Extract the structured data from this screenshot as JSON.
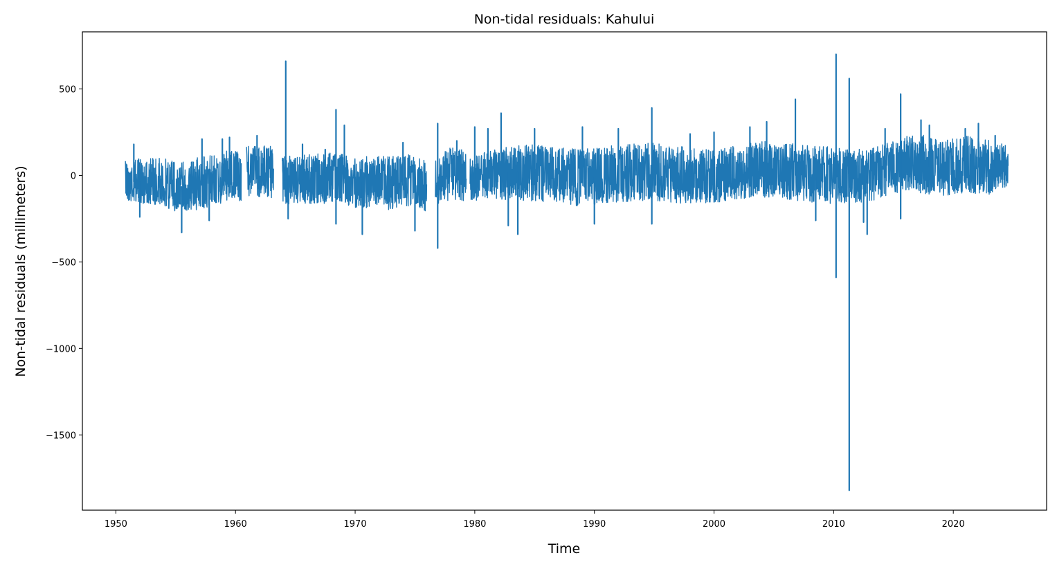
{
  "chart_data": {
    "type": "line",
    "title": "Non-tidal residuals: Kahului",
    "xlabel": "Time",
    "ylabel": "Non-tidal residuals (millimeters)",
    "xlim": [
      1947.2,
      2027.8
    ],
    "ylim": [
      -1935,
      830
    ],
    "x_ticks": [
      1950,
      1960,
      1970,
      1980,
      1990,
      2000,
      2010,
      2020
    ],
    "y_ticks": [
      500,
      0,
      -500,
      -1000,
      -1500
    ],
    "y_tick_labels": [
      "500",
      "0",
      "−500",
      "−1000",
      "−1500"
    ],
    "grid": false,
    "legend": "none",
    "line_color": "#1f77b4",
    "series": [
      {
        "data_gaps": [
          [
            1960.5,
            1960.9
          ],
          [
            1963.2,
            1963.9
          ],
          [
            1976.0,
            1976.7
          ],
          [
            1979.3,
            1979.6
          ]
        ],
        "band": [
          {
            "x": 1950.8,
            "mean": -30,
            "lo": -150,
            "hi": 90
          },
          {
            "x": 1952.0,
            "mean": -40,
            "lo": -160,
            "hi": 100
          },
          {
            "x": 1953.5,
            "mean": -45,
            "lo": -170,
            "hi": 110
          },
          {
            "x": 1955.0,
            "mean": -70,
            "lo": -210,
            "hi": 90
          },
          {
            "x": 1956.5,
            "mean": -60,
            "lo": -200,
            "hi": 100
          },
          {
            "x": 1958.0,
            "mean": -50,
            "lo": -190,
            "hi": 120
          },
          {
            "x": 1959.5,
            "mean": 0,
            "lo": -140,
            "hi": 150
          },
          {
            "x": 1960.5,
            "mean": -20,
            "lo": -160,
            "hi": 130
          },
          {
            "x": 1961.0,
            "mean": 40,
            "lo": -120,
            "hi": 180
          },
          {
            "x": 1963.2,
            "mean": 40,
            "lo": -130,
            "hi": 170
          },
          {
            "x": 1963.9,
            "mean": -30,
            "lo": -170,
            "hi": 110
          },
          {
            "x": 1965.5,
            "mean": -20,
            "lo": -160,
            "hi": 120
          },
          {
            "x": 1967.0,
            "mean": -20,
            "lo": -170,
            "hi": 130
          },
          {
            "x": 1968.5,
            "mean": 0,
            "lo": -150,
            "hi": 140
          },
          {
            "x": 1970.0,
            "mean": -40,
            "lo": -190,
            "hi": 110
          },
          {
            "x": 1971.5,
            "mean": -40,
            "lo": -190,
            "hi": 110
          },
          {
            "x": 1973.0,
            "mean": -40,
            "lo": -200,
            "hi": 110
          },
          {
            "x": 1974.5,
            "mean": -30,
            "lo": -180,
            "hi": 120
          },
          {
            "x": 1976.0,
            "mean": -60,
            "lo": -210,
            "hi": 90
          },
          {
            "x": 1976.7,
            "mean": -20,
            "lo": -170,
            "hi": 120
          },
          {
            "x": 1978.0,
            "mean": 20,
            "lo": -140,
            "hi": 160
          },
          {
            "x": 1979.3,
            "mean": 0,
            "lo": -150,
            "hi": 150
          },
          {
            "x": 1979.6,
            "mean": -20,
            "lo": -150,
            "hi": 110
          },
          {
            "x": 1981.0,
            "mean": -10,
            "lo": -140,
            "hi": 140
          },
          {
            "x": 1983.0,
            "mean": 20,
            "lo": -140,
            "hi": 170
          },
          {
            "x": 1985.0,
            "mean": 20,
            "lo": -150,
            "hi": 180
          },
          {
            "x": 1987.0,
            "mean": 0,
            "lo": -160,
            "hi": 160
          },
          {
            "x": 1989.0,
            "mean": -20,
            "lo": -180,
            "hi": 150
          },
          {
            "x": 1991.0,
            "mean": 0,
            "lo": -160,
            "hi": 170
          },
          {
            "x": 1993.0,
            "mean": 10,
            "lo": -150,
            "hi": 180
          },
          {
            "x": 1995.0,
            "mean": 10,
            "lo": -150,
            "hi": 190
          },
          {
            "x": 1997.0,
            "mean": 0,
            "lo": -160,
            "hi": 170
          },
          {
            "x": 1999.0,
            "mean": -10,
            "lo": -170,
            "hi": 150
          },
          {
            "x": 2001.0,
            "mean": 0,
            "lo": -150,
            "hi": 160
          },
          {
            "x": 2003.0,
            "mean": 20,
            "lo": -130,
            "hi": 190
          },
          {
            "x": 2005.0,
            "mean": 20,
            "lo": -130,
            "hi": 200
          },
          {
            "x": 2007.0,
            "mean": 0,
            "lo": -150,
            "hi": 180
          },
          {
            "x": 2009.0,
            "mean": -10,
            "lo": -160,
            "hi": 170
          },
          {
            "x": 2011.0,
            "mean": -10,
            "lo": -170,
            "hi": 160
          },
          {
            "x": 2013.0,
            "mean": 0,
            "lo": -150,
            "hi": 150
          },
          {
            "x": 2015.0,
            "mean": 40,
            "lo": -110,
            "hi": 200
          },
          {
            "x": 2017.0,
            "mean": 70,
            "lo": -100,
            "hi": 250
          },
          {
            "x": 2019.0,
            "mean": 40,
            "lo": -120,
            "hi": 200
          },
          {
            "x": 2021.0,
            "mean": 60,
            "lo": -100,
            "hi": 230
          },
          {
            "x": 2023.0,
            "mean": 40,
            "lo": -110,
            "hi": 210
          },
          {
            "x": 2024.6,
            "mean": 80,
            "lo": -60,
            "hi": 200
          }
        ],
        "spikes": [
          {
            "x": 1951.5,
            "y": 180
          },
          {
            "x": 1952.0,
            "y": -240
          },
          {
            "x": 1955.5,
            "y": -330
          },
          {
            "x": 1957.2,
            "y": 210
          },
          {
            "x": 1957.8,
            "y": -260
          },
          {
            "x": 1958.9,
            "y": 210
          },
          {
            "x": 1959.5,
            "y": 220
          },
          {
            "x": 1961.8,
            "y": 230
          },
          {
            "x": 1964.2,
            "y": 660
          },
          {
            "x": 1964.4,
            "y": -250
          },
          {
            "x": 1965.6,
            "y": 180
          },
          {
            "x": 1967.5,
            "y": 150
          },
          {
            "x": 1968.4,
            "y": 380
          },
          {
            "x": 1968.4,
            "y": -280
          },
          {
            "x": 1969.1,
            "y": 290
          },
          {
            "x": 1970.6,
            "y": -340
          },
          {
            "x": 1974.0,
            "y": 190
          },
          {
            "x": 1975.0,
            "y": -320
          },
          {
            "x": 1976.9,
            "y": 300
          },
          {
            "x": 1976.9,
            "y": -420
          },
          {
            "x": 1978.5,
            "y": 200
          },
          {
            "x": 1980.0,
            "y": 280
          },
          {
            "x": 1981.1,
            "y": 270
          },
          {
            "x": 1982.2,
            "y": 360
          },
          {
            "x": 1982.8,
            "y": -290
          },
          {
            "x": 1983.6,
            "y": -340
          },
          {
            "x": 1985.0,
            "y": 270
          },
          {
            "x": 1989.0,
            "y": 280
          },
          {
            "x": 1990.0,
            "y": -280
          },
          {
            "x": 1992.0,
            "y": 270
          },
          {
            "x": 1994.8,
            "y": 390
          },
          {
            "x": 1994.8,
            "y": -280
          },
          {
            "x": 1998.0,
            "y": 240
          },
          {
            "x": 2000.0,
            "y": 250
          },
          {
            "x": 2003.0,
            "y": 280
          },
          {
            "x": 2004.4,
            "y": 310
          },
          {
            "x": 2006.8,
            "y": 440
          },
          {
            "x": 2008.5,
            "y": -260
          },
          {
            "x": 2010.2,
            "y": 700
          },
          {
            "x": 2010.2,
            "y": -590
          },
          {
            "x": 2011.3,
            "y": 560
          },
          {
            "x": 2011.3,
            "y": -1820
          },
          {
            "x": 2012.5,
            "y": -270
          },
          {
            "x": 2012.8,
            "y": -340
          },
          {
            "x": 2014.3,
            "y": 270
          },
          {
            "x": 2015.6,
            "y": 470
          },
          {
            "x": 2015.6,
            "y": -250
          },
          {
            "x": 2017.3,
            "y": 320
          },
          {
            "x": 2018.0,
            "y": 290
          },
          {
            "x": 2021.0,
            "y": 270
          },
          {
            "x": 2022.1,
            "y": 300
          },
          {
            "x": 2023.5,
            "y": 230
          }
        ]
      }
    ]
  }
}
